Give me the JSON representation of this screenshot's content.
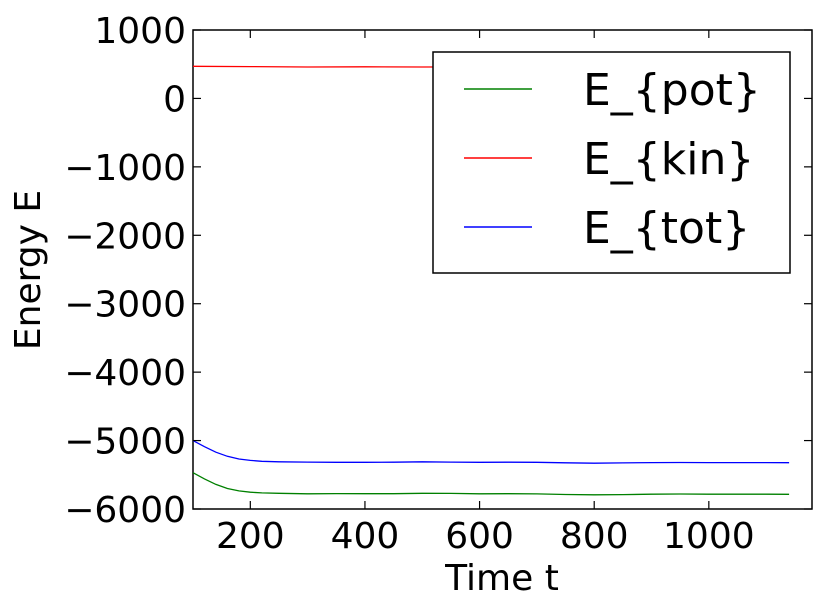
{
  "chart_data": {
    "type": "line",
    "title": "",
    "xlabel": "Time t",
    "ylabel": "Energy E",
    "xlim": [
      100,
      1180
    ],
    "ylim": [
      -6000,
      1000
    ],
    "xticks": [
      200,
      400,
      600,
      800,
      1000
    ],
    "yticks": [
      1000,
      0,
      -1000,
      -2000,
      -3000,
      -4000,
      -5000,
      -6000
    ],
    "xtick_labels": [
      "200",
      "400",
      "600",
      "800",
      "1000"
    ],
    "ytick_labels": [
      "1000",
      "0",
      "−1000",
      "−2000",
      "−3000",
      "−4000",
      "−5000",
      "−6000"
    ],
    "grid": false,
    "legend_position": "top-right",
    "series": [
      {
        "name": "E_{pot}",
        "color": "#008000",
        "x": [
          100,
          120,
          140,
          160,
          180,
          200,
          220,
          250,
          300,
          350,
          400,
          450,
          500,
          550,
          600,
          650,
          700,
          750,
          800,
          850,
          900,
          950,
          1000,
          1050,
          1100,
          1140
        ],
        "y": [
          -5470,
          -5560,
          -5640,
          -5700,
          -5735,
          -5755,
          -5765,
          -5770,
          -5778,
          -5775,
          -5776,
          -5777,
          -5770,
          -5772,
          -5778,
          -5776,
          -5779,
          -5788,
          -5792,
          -5789,
          -5783,
          -5781,
          -5784,
          -5783,
          -5783,
          -5785
        ]
      },
      {
        "name": "E_{kin}",
        "color": "#ff0000",
        "x": [
          100,
          200,
          300,
          400,
          500,
          600,
          700,
          800,
          900,
          1000,
          1100,
          1140
        ],
        "y": [
          470,
          465,
          460,
          462,
          460,
          461,
          462,
          461,
          460,
          461,
          460,
          461
        ]
      },
      {
        "name": "E_{tot}",
        "color": "#0000ff",
        "x": [
          100,
          120,
          140,
          160,
          180,
          200,
          220,
          250,
          300,
          350,
          400,
          450,
          500,
          550,
          600,
          650,
          700,
          750,
          800,
          850,
          900,
          950,
          1000,
          1050,
          1100,
          1140
        ],
        "y": [
          -5000,
          -5090,
          -5170,
          -5230,
          -5270,
          -5290,
          -5303,
          -5310,
          -5315,
          -5318,
          -5317,
          -5316,
          -5310,
          -5314,
          -5318,
          -5316,
          -5318,
          -5325,
          -5330,
          -5326,
          -5322,
          -5320,
          -5322,
          -5322,
          -5322,
          -5324
        ]
      }
    ]
  }
}
